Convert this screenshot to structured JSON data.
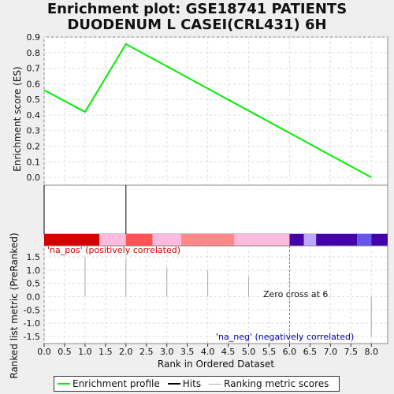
{
  "title": {
    "line1": "Enrichment plot: GSE18741 PATIENTS",
    "line2": "DUODENUM L CASEI(CRL431) 6H"
  },
  "chart_data": [
    {
      "type": "line",
      "name": "enrichment-profile",
      "ylabel": "Enrichment score (ES)",
      "xlim": [
        0,
        8.4
      ],
      "ylim": [
        -0.05,
        0.9
      ],
      "yticks": [
        "0.9",
        "0.8",
        "0.7",
        "0.6",
        "0.5",
        "0.4",
        "0.3",
        "0.2",
        "0.1",
        "0.0"
      ],
      "grid": true,
      "series": [
        {
          "x": [
            0,
            1,
            2,
            8
          ],
          "y": [
            0.56,
            0.42,
            0.855,
            0.0
          ]
        }
      ],
      "color": "#00ee00"
    },
    {
      "type": "bar",
      "name": "hits",
      "hits_x": [
        0,
        2
      ]
    },
    {
      "type": "heatmap",
      "name": "rank-colorbar",
      "segments": [
        {
          "from": 0.0,
          "to": 1.35,
          "color": "#d40000"
        },
        {
          "from": 1.35,
          "to": 2.0,
          "color": "#ffbbdd"
        },
        {
          "from": 2.0,
          "to": 2.65,
          "color": "#ff5555"
        },
        {
          "from": 2.65,
          "to": 3.35,
          "color": "#ffbbdd"
        },
        {
          "from": 3.35,
          "to": 4.65,
          "color": "#ff8888"
        },
        {
          "from": 4.65,
          "to": 6.0,
          "color": "#ffbbdd"
        },
        {
          "from": 6.0,
          "to": 6.35,
          "color": "#4400aa"
        },
        {
          "from": 6.35,
          "to": 6.65,
          "color": "#bbaaff"
        },
        {
          "from": 6.65,
          "to": 7.65,
          "color": "#4400aa"
        },
        {
          "from": 7.65,
          "to": 8.0,
          "color": "#6655ee"
        },
        {
          "from": 8.0,
          "to": 8.4,
          "color": "#4400aa"
        }
      ]
    },
    {
      "type": "bar",
      "name": "ranked-metric",
      "xlabel": "Rank in Ordered Dataset",
      "ylabel": "Ranked list metric (PreRanked)",
      "xlim": [
        0,
        8.4
      ],
      "ylim": [
        -1.5,
        1.5
      ],
      "xticks": [
        "0.0",
        "0.5",
        "1.0",
        "1.5",
        "2.0",
        "2.5",
        "3.0",
        "3.5",
        "4.0",
        "4.5",
        "5.0",
        "5.5",
        "6.0",
        "6.5",
        "7.0",
        "7.5",
        "8.0"
      ],
      "yticks": [
        "1.5",
        "1.0",
        "0.5",
        "0.0",
        "-0.5",
        "-1.0",
        "-1.5"
      ],
      "x": [
        1,
        2,
        3,
        4,
        5,
        7,
        8
      ],
      "values": [
        1.5,
        1.45,
        1.1,
        1.0,
        0.75,
        0.0,
        -1.5
      ],
      "zero_cross": 6
    }
  ],
  "annotations": {
    "pos_label": "'na_pos' (positively correlated)",
    "neg_label": "'na_neg' (negatively correlated)",
    "zero_cross": "Zero cross at 6"
  },
  "legend": {
    "items": [
      {
        "label": "Enrichment profile",
        "color": "#00ee00"
      },
      {
        "label": "Hits",
        "color": "#000000"
      },
      {
        "label": "Ranking metric scores",
        "color": "#aaaaaa"
      }
    ]
  }
}
